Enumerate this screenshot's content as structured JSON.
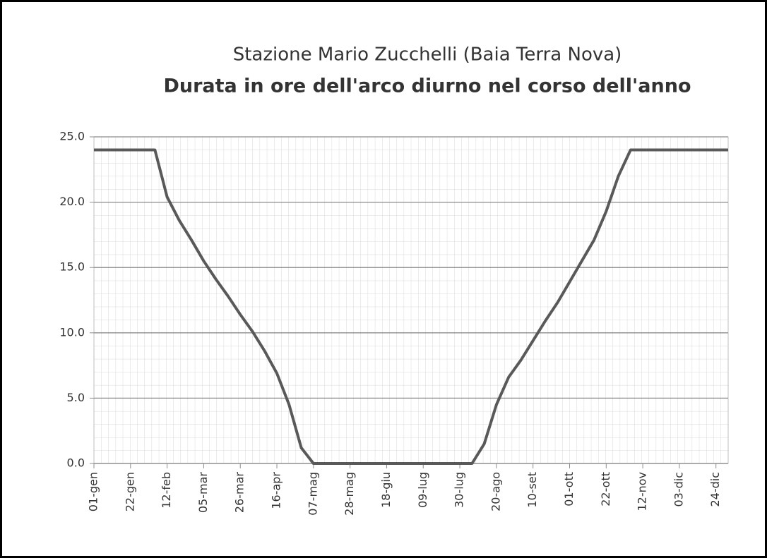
{
  "chart_data": {
    "type": "line",
    "title": "Stazione Mario Zucchelli (Baia Terra Nova)",
    "subtitle": "Durata in ore dell'arco diurno nel corso dell'anno",
    "categories": [
      "01-gen",
      null,
      null,
      "22-gen",
      null,
      null,
      "12-feb",
      null,
      null,
      "05-mar",
      null,
      null,
      "26-mar",
      null,
      null,
      "16-apr",
      null,
      null,
      "07-mag",
      null,
      null,
      "28-mag",
      null,
      null,
      "18-giu",
      null,
      null,
      "09-lug",
      null,
      null,
      "30-lug",
      null,
      null,
      "20-ago",
      null,
      null,
      "10-set",
      null,
      null,
      "01-ott",
      null,
      null,
      "22-ott",
      null,
      null,
      "12-nov",
      null,
      null,
      "03-dic",
      null,
      null,
      "24-dic",
      null
    ],
    "series": [
      {
        "color": "#595959",
        "values": [
          24,
          24,
          24,
          24,
          24,
          24,
          20.4,
          18.6,
          17.1,
          15.5,
          14.1,
          12.8,
          11.4,
          10.1,
          8.6,
          6.9,
          4.5,
          1.2,
          0,
          0,
          0,
          0,
          0,
          0,
          0,
          0,
          0,
          0,
          0,
          0,
          0,
          0,
          1.5,
          4.5,
          6.6,
          7.9,
          9.4,
          10.9,
          12.3,
          13.9,
          15.5,
          17.1,
          19.3,
          22.0,
          24,
          24,
          24,
          24,
          24,
          24,
          24,
          24,
          24
        ]
      }
    ],
    "ylim": [
      0,
      25
    ],
    "yticks": [
      {
        "value": 0,
        "label": "0.0"
      },
      {
        "value": 5,
        "label": "5.0"
      },
      {
        "value": 10,
        "label": "10.0"
      },
      {
        "value": 15,
        "label": "15.0"
      },
      {
        "value": 20,
        "label": "20.0"
      },
      {
        "value": 25,
        "label": "25.0"
      }
    ],
    "grid": true
  }
}
